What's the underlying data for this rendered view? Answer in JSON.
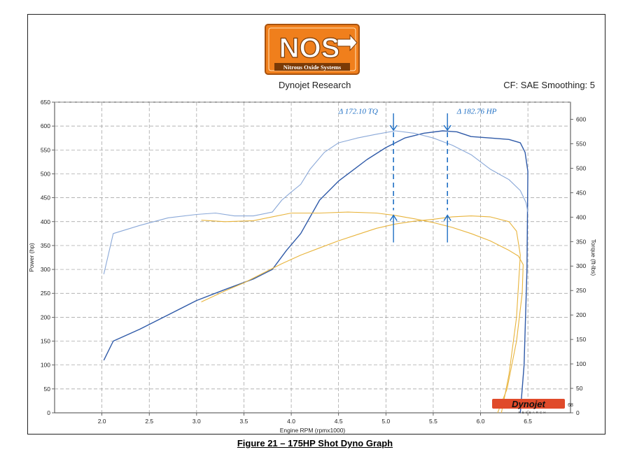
{
  "logo": {
    "brand": "NOS",
    "tagline": "Nitrous Oxide Systems"
  },
  "header": {
    "subtitle": "Dynojet Research",
    "correction": "CF: SAE Smoothing: 5"
  },
  "watermark": {
    "text": "Dynojet",
    "sub": "RESEARCH",
    "code": "68"
  },
  "caption": "Figure 21 – 175HP Shot Dyno Graph",
  "colors": {
    "blue_dark": "#2f5aa8",
    "blue_light": "#8aa8d8",
    "orange": "#e8b43c",
    "ink": "#1f6fc4",
    "logo_orange": "#f07f1c"
  },
  "chart_data": {
    "type": "line",
    "xlabel": "Engine RPM (rpmx1000)",
    "ylabel_left": "Power (hp)",
    "ylabel_right": "Torque (ft-lbs)",
    "xlim": [
      1.5,
      6.95
    ],
    "ylim_left": [
      0,
      650
    ],
    "ylim_right": [
      0,
      635
    ],
    "x_ticks": [
      2.0,
      2.5,
      3.0,
      3.5,
      4.0,
      4.5,
      5.0,
      5.5,
      6.0,
      6.5
    ],
    "x_tick_labels": [
      "2.0",
      "2.5",
      "3.0",
      "3.5",
      "4.0",
      "4.5",
      "5.0",
      "5.5",
      "6.0",
      "6.5"
    ],
    "y_left_ticks": [
      0,
      50,
      100,
      150,
      200,
      250,
      300,
      350,
      400,
      450,
      500,
      550,
      600,
      650
    ],
    "y_left_labels": [
      "0",
      "50",
      "100",
      "150",
      "200",
      "250",
      "300",
      "350",
      "400",
      "450",
      "500",
      "550",
      "600",
      "650"
    ],
    "y_right_ticks": [
      0,
      50,
      100,
      150,
      200,
      250,
      300,
      350,
      400,
      450,
      500,
      550,
      600
    ],
    "y_right_labels": [
      "0",
      "50",
      "100",
      "150",
      "200",
      "250",
      "300",
      "350",
      "400",
      "450",
      "500",
      "550",
      "600"
    ],
    "grid": true,
    "series": [
      {
        "axis": "left",
        "color": "#2f5aa8",
        "width": 1.4,
        "x": [
          2.02,
          2.12,
          2.4,
          2.7,
          3.0,
          3.3,
          3.6,
          3.8,
          3.95,
          4.1,
          4.3,
          4.5,
          4.8,
          5.0,
          5.2,
          5.4,
          5.6,
          5.75,
          5.9,
          6.1,
          6.3,
          6.42,
          6.47,
          6.5,
          6.49,
          6.46,
          6.42
        ],
        "y": [
          110,
          150,
          175,
          205,
          235,
          258,
          280,
          300,
          340,
          375,
          445,
          485,
          530,
          555,
          575,
          585,
          590,
          588,
          578,
          575,
          572,
          565,
          545,
          505,
          300,
          100,
          0
        ]
      },
      {
        "axis": "left",
        "color": "#8aa8d8",
        "width": 1.1,
        "x": [
          2.02,
          2.12,
          2.4,
          2.7,
          3.0,
          3.2,
          3.4,
          3.6,
          3.8,
          3.9,
          4.0,
          4.1,
          4.2,
          4.35,
          4.5,
          4.7,
          4.9,
          5.1,
          5.3,
          5.5,
          5.7,
          5.9,
          6.1,
          6.3,
          6.42,
          6.48,
          6.5
        ],
        "y": [
          290,
          375,
          392,
          408,
          415,
          418,
          412,
          412,
          420,
          445,
          462,
          478,
          510,
          545,
          565,
          575,
          583,
          590,
          585,
          575,
          560,
          540,
          510,
          488,
          465,
          440,
          420
        ]
      },
      {
        "axis": "left",
        "color": "#e8b43c",
        "width": 1.1,
        "x": [
          3.05,
          3.3,
          3.5,
          3.7,
          3.9,
          4.1,
          4.3,
          4.5,
          4.7,
          4.9,
          5.1,
          5.3,
          5.5,
          5.7,
          5.9,
          6.1,
          6.3,
          6.38,
          6.42,
          6.38,
          6.3,
          6.22
        ],
        "y": [
          232,
          255,
          272,
          292,
          312,
          330,
          345,
          360,
          373,
          386,
          395,
          401,
          405,
          410,
          412,
          410,
          400,
          380,
          330,
          200,
          80,
          0
        ]
      },
      {
        "axis": "left",
        "color": "#e8b43c",
        "width": 1.1,
        "x": [
          3.05,
          3.3,
          3.6,
          3.8,
          4.0,
          4.3,
          4.6,
          4.9,
          5.1,
          5.3,
          5.5,
          5.7,
          5.9,
          6.1,
          6.3,
          6.4,
          6.45,
          6.44,
          6.38,
          6.28,
          6.18
        ],
        "y": [
          403,
          400,
          402,
          410,
          418,
          418,
          420,
          418,
          413,
          406,
          398,
          388,
          375,
          360,
          340,
          328,
          310,
          250,
          150,
          50,
          0
        ]
      }
    ],
    "annotations": [
      {
        "text": "Δ 172.10 TQ",
        "x": 4.5,
        "y": 630
      },
      {
        "text": "Δ 182.76 HP",
        "x": 5.75,
        "y": 630
      }
    ],
    "markers": [
      {
        "x": 5.08,
        "y_top": 590,
        "y_bottom": 415,
        "label_ref": 0
      },
      {
        "x": 5.65,
        "y_top": 590,
        "y_bottom": 415,
        "label_ref": 1
      }
    ]
  }
}
